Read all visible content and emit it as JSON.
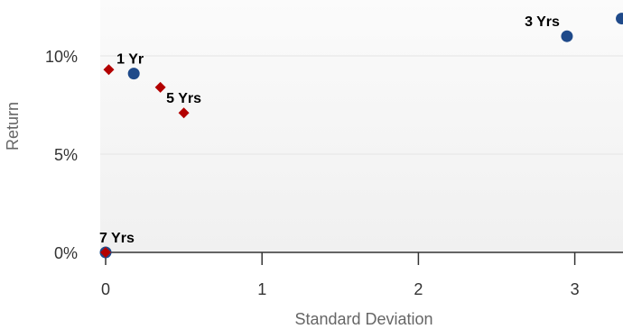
{
  "chart_data": {
    "type": "scatter",
    "title": "",
    "xlabel": "Standard Deviation",
    "ylabel": "Return",
    "xlim": [
      0,
      3.3
    ],
    "ylim": [
      0,
      12
    ],
    "x_ticks": [
      {
        "value": 0,
        "label": "0"
      },
      {
        "value": 1,
        "label": "1"
      },
      {
        "value": 2,
        "label": "2"
      },
      {
        "value": 3,
        "label": "3"
      }
    ],
    "y_ticks": [
      {
        "value": 0,
        "label": "0%"
      },
      {
        "value": 5,
        "label": "5%"
      },
      {
        "value": 10,
        "label": "10%"
      }
    ],
    "grid": true,
    "plot_background": "#f2f2f2",
    "series": [
      {
        "marker": "circle",
        "color": "#1f4a8a",
        "points": [
          {
            "x": 0.18,
            "y": 9.1,
            "label": "1 Yr"
          },
          {
            "x": 2.95,
            "y": 11.0,
            "label": "3 Yrs"
          },
          {
            "x": 3.3,
            "y": 11.9,
            "label": ""
          },
          {
            "x": 0.0,
            "y": 0.0,
            "label": "7 Yrs"
          }
        ]
      },
      {
        "marker": "diamond",
        "color": "#b30000",
        "points": [
          {
            "x": 0.02,
            "y": 9.3,
            "label": ""
          },
          {
            "x": 0.35,
            "y": 8.4,
            "label": ""
          },
          {
            "x": 0.5,
            "y": 7.1,
            "label": "5 Yrs"
          },
          {
            "x": 0.0,
            "y": 0.0,
            "label": ""
          }
        ]
      }
    ]
  }
}
